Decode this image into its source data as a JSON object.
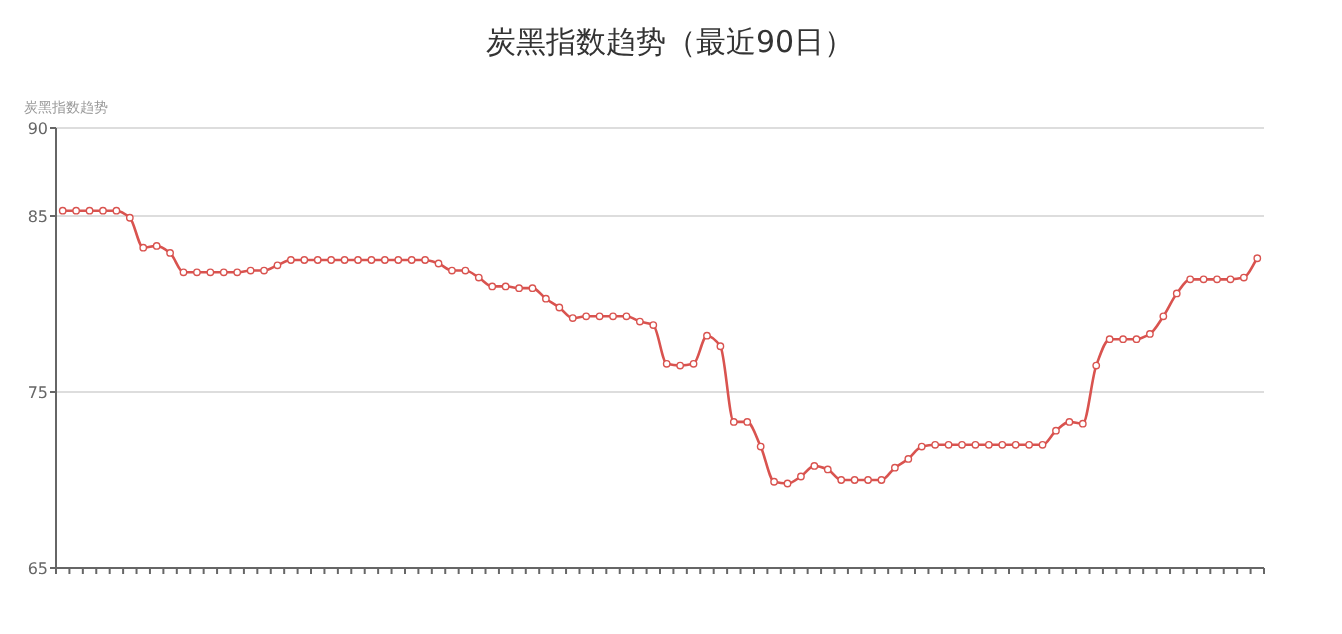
{
  "chart_data": {
    "type": "line",
    "title": "炭黑指数趋势（最近90日）",
    "ylabel": "炭黑指数趋势",
    "categories": [
      null,
      null,
      null,
      null,
      null,
      null,
      null,
      null,
      null,
      null,
      null,
      null,
      null,
      null,
      null,
      null,
      null,
      null,
      null,
      null,
      null,
      null,
      null,
      null,
      null,
      null,
      null,
      null,
      null,
      null,
      null,
      null,
      null,
      null,
      null,
      null,
      null,
      null,
      null,
      null,
      null,
      null,
      null,
      null,
      null,
      null,
      null,
      null,
      null,
      null,
      null,
      null,
      null,
      null,
      null,
      null,
      null,
      null,
      null,
      null,
      null,
      null,
      null,
      null,
      null,
      null,
      null,
      null,
      null,
      null,
      null,
      null,
      null,
      null,
      null,
      null,
      null,
      null,
      null,
      null,
      null,
      null,
      null,
      null,
      null,
      null,
      null,
      null,
      null,
      null
    ],
    "series": [
      {
        "color": "#d9534f",
        "values": [
          85.3,
          85.3,
          85.3,
          85.3,
          85.3,
          84.9,
          83.2,
          83.3,
          82.9,
          81.8,
          81.8,
          81.8,
          81.8,
          81.8,
          81.9,
          81.9,
          82.2,
          82.5,
          82.5,
          82.5,
          82.5,
          82.5,
          82.5,
          82.5,
          82.5,
          82.5,
          82.5,
          82.5,
          82.3,
          81.9,
          81.9,
          81.5,
          81.0,
          81.0,
          80.9,
          80.9,
          80.3,
          79.8,
          79.2,
          79.3,
          79.3,
          79.3,
          79.3,
          79.0,
          78.8,
          76.6,
          76.5,
          76.6,
          78.2,
          77.6,
          73.3,
          73.3,
          71.9,
          69.9,
          69.8,
          70.2,
          70.8,
          70.6,
          70.0,
          70.0,
          70.0,
          70.0,
          70.7,
          71.2,
          71.9,
          72.0,
          72.0,
          72.0,
          72.0,
          72.0,
          72.0,
          72.0,
          72.0,
          72.0,
          72.8,
          73.3,
          73.2,
          76.5,
          78.0,
          78.0,
          78.0,
          78.3,
          79.3,
          80.6,
          81.4,
          81.4,
          81.4,
          81.4,
          81.5,
          82.6
        ]
      }
    ],
    "ylim": [
      65,
      90
    ],
    "yticks": [
      65,
      75,
      85,
      90
    ],
    "grid": "y",
    "marker": "circle",
    "line_style": "solid"
  }
}
